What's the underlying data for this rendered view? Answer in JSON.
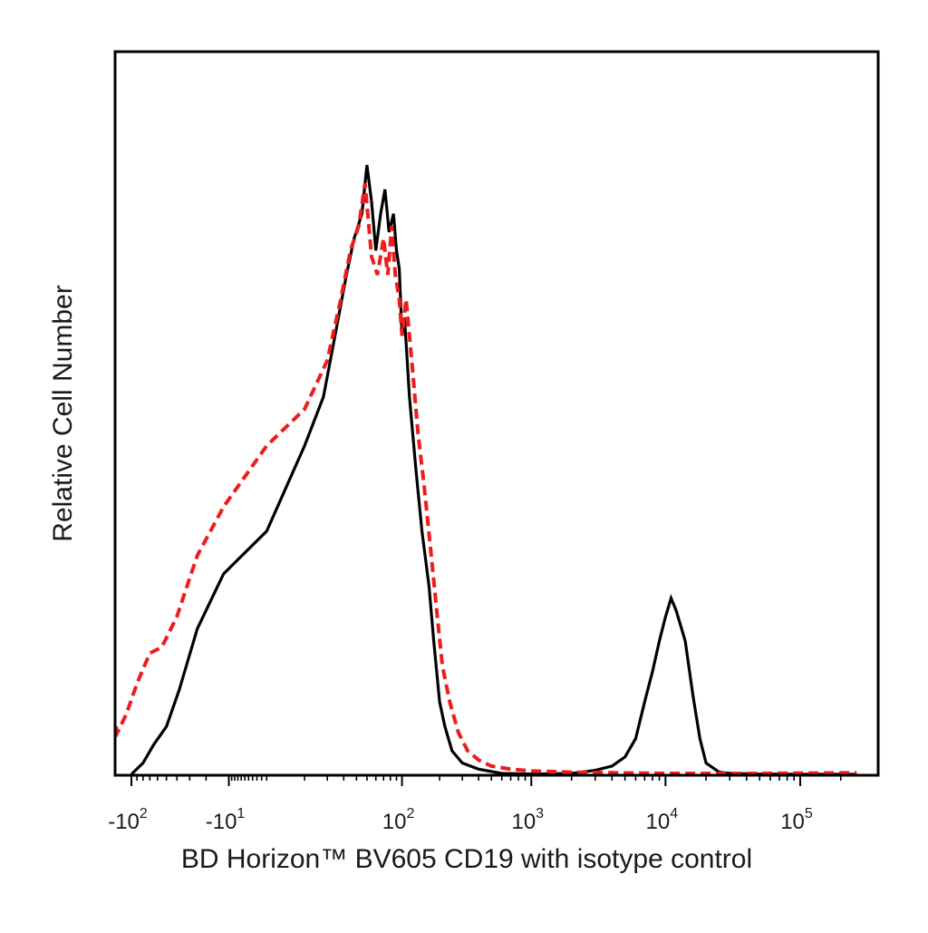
{
  "chart_data": {
    "type": "line",
    "title": "",
    "xlabel": "BD Horizon™ BV605 CD19 with isotype control",
    "ylabel": "Relative Cell Number",
    "x_scale": "biexponential",
    "grid": false,
    "legend": "none",
    "x_ticks": [
      {
        "value": -100,
        "base": "-10",
        "exp": "2"
      },
      {
        "value": -10,
        "base": "-10",
        "exp": "1"
      },
      {
        "value": 100,
        "base": "10",
        "exp": "2"
      },
      {
        "value": 1000,
        "base": "10",
        "exp": "3"
      },
      {
        "value": 10000,
        "base": "10",
        "exp": "4"
      },
      {
        "value": 100000,
        "base": "10",
        "exp": "5"
      }
    ],
    "minor_ticks": [
      -90,
      -80,
      -70,
      -60,
      -50,
      -40,
      -30,
      -20,
      -9,
      -8,
      -7,
      -6,
      -5,
      -4,
      -3,
      -2,
      -1,
      0,
      10,
      20,
      30,
      40,
      50,
      60,
      70,
      80,
      90,
      200,
      300,
      400,
      500,
      600,
      700,
      800,
      900,
      2000,
      3000,
      4000,
      5000,
      6000,
      7000,
      8000,
      9000,
      20000,
      30000,
      40000,
      50000,
      60000,
      70000,
      80000,
      90000,
      200000
    ],
    "xlim": [
      -150,
      262144
    ],
    "ylim": [
      0,
      100
    ],
    "series": [
      {
        "color": "#000000",
        "dash": "solid",
        "points": [
          [
            -100,
            0
          ],
          [
            -80,
            2
          ],
          [
            -65,
            5
          ],
          [
            -50,
            8
          ],
          [
            -38,
            14
          ],
          [
            -25,
            24
          ],
          [
            -12,
            33
          ],
          [
            0,
            40
          ],
          [
            10,
            54
          ],
          [
            18,
            62
          ],
          [
            25,
            73
          ],
          [
            32,
            82
          ],
          [
            38,
            88
          ],
          [
            45,
            92
          ],
          [
            50,
            100
          ],
          [
            55,
            94
          ],
          [
            60,
            86
          ],
          [
            66,
            92
          ],
          [
            72,
            96
          ],
          [
            78,
            89
          ],
          [
            85,
            92
          ],
          [
            90,
            86
          ],
          [
            95,
            83
          ],
          [
            100,
            72
          ],
          [
            105,
            75
          ],
          [
            115,
            62
          ],
          [
            130,
            50
          ],
          [
            145,
            40
          ],
          [
            165,
            31
          ],
          [
            180,
            22
          ],
          [
            200,
            12
          ],
          [
            220,
            8
          ],
          [
            250,
            4
          ],
          [
            300,
            2
          ],
          [
            400,
            1
          ],
          [
            600,
            0.3
          ],
          [
            1000,
            0.2
          ],
          [
            2000,
            0.3
          ],
          [
            3000,
            0.8
          ],
          [
            4000,
            1.5
          ],
          [
            5000,
            3
          ],
          [
            6000,
            6
          ],
          [
            7000,
            12
          ],
          [
            8000,
            17
          ],
          [
            9000,
            22
          ],
          [
            10000,
            26
          ],
          [
            11000,
            29
          ],
          [
            12000,
            27
          ],
          [
            14000,
            22
          ],
          [
            16000,
            13
          ],
          [
            18000,
            6
          ],
          [
            20000,
            2
          ],
          [
            25000,
            0.5
          ],
          [
            30000,
            0.3
          ],
          [
            50000,
            0.2
          ],
          [
            100000,
            0.1
          ],
          [
            262144,
            0.1
          ]
        ]
      },
      {
        "color": "#ee1c1c",
        "dash": "dashed",
        "points": [
          [
            -150,
            8
          ],
          [
            -130,
            7
          ],
          [
            -110,
            10
          ],
          [
            -90,
            15
          ],
          [
            -70,
            20
          ],
          [
            -55,
            21
          ],
          [
            -40,
            26
          ],
          [
            -25,
            36
          ],
          [
            -12,
            44
          ],
          [
            0,
            54
          ],
          [
            10,
            60
          ],
          [
            20,
            68
          ],
          [
            28,
            78
          ],
          [
            35,
            86
          ],
          [
            42,
            90
          ],
          [
            48,
            97
          ],
          [
            55,
            85
          ],
          [
            62,
            82
          ],
          [
            70,
            88
          ],
          [
            76,
            82
          ],
          [
            82,
            90
          ],
          [
            88,
            82
          ],
          [
            95,
            78
          ],
          [
            100,
            72
          ],
          [
            108,
            78
          ],
          [
            120,
            68
          ],
          [
            135,
            56
          ],
          [
            150,
            48
          ],
          [
            170,
            37
          ],
          [
            190,
            27
          ],
          [
            210,
            18
          ],
          [
            240,
            12
          ],
          [
            280,
            7
          ],
          [
            330,
            4
          ],
          [
            400,
            2.5
          ],
          [
            500,
            1.5
          ],
          [
            700,
            1
          ],
          [
            1000,
            0.7
          ],
          [
            2000,
            0.5
          ],
          [
            4000,
            0.4
          ],
          [
            10000,
            0.3
          ],
          [
            50000,
            0.3
          ],
          [
            262144,
            0.4
          ]
        ]
      }
    ]
  }
}
